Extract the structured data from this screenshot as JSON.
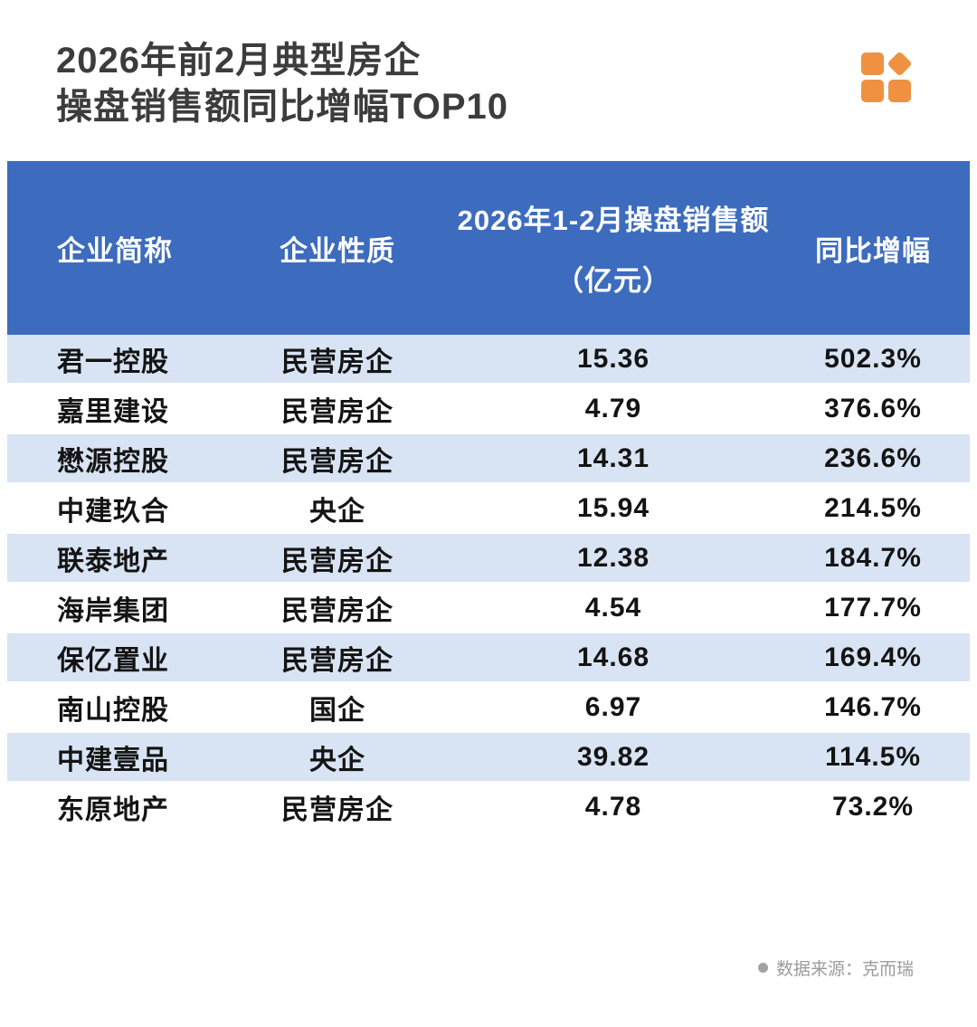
{
  "title": {
    "line1": "2026年前2月典型房企",
    "line2": "操盘销售额同比增幅TOP10"
  },
  "colors": {
    "header_bg": "#3d6cbe",
    "row_alt_bg": "#d8e4f3",
    "accent_orange": "#ef9140",
    "title_color": "#3c3c3c",
    "source_gray": "#9b9b9b"
  },
  "icons": {
    "logo": "orange-squares-logo"
  },
  "table": {
    "header": {
      "name": "企业简称",
      "nature": "企业性质",
      "sales_line1": "2026年1-2月操盘销售额",
      "sales_line2": "（亿元）",
      "growth": "同比增幅"
    },
    "rows": [
      {
        "name": "君一控股",
        "nature": "民营房企",
        "sales": "15.36",
        "growth": "502.3%"
      },
      {
        "name": "嘉里建设",
        "nature": "民营房企",
        "sales": "4.79",
        "growth": "376.6%"
      },
      {
        "name": "懋源控股",
        "nature": "民营房企",
        "sales": "14.31",
        "growth": "236.6%"
      },
      {
        "name": "中建玖合",
        "nature": "央企",
        "sales": "15.94",
        "growth": "214.5%"
      },
      {
        "name": "联泰地产",
        "nature": "民营房企",
        "sales": "12.38",
        "growth": "184.7%"
      },
      {
        "name": "海岸集团",
        "nature": "民营房企",
        "sales": "4.54",
        "growth": "177.7%"
      },
      {
        "name": "保亿置业",
        "nature": "民营房企",
        "sales": "14.68",
        "growth": "169.4%"
      },
      {
        "name": "南山控股",
        "nature": "国企",
        "sales": "6.97",
        "growth": "146.7%"
      },
      {
        "name": "中建壹品",
        "nature": "央企",
        "sales": "39.82",
        "growth": "114.5%"
      },
      {
        "name": "东原地产",
        "nature": "民营房企",
        "sales": "4.78",
        "growth": "73.2%"
      }
    ]
  },
  "footer": {
    "source_label": "数据来源：克而瑞"
  },
  "chart_data": {
    "type": "table",
    "title": "2026年前2月典型房企操盘销售额同比增幅TOP10",
    "columns": [
      "企业简称",
      "企业性质",
      "2026年1-2月操盘销售额（亿元）",
      "同比增幅"
    ],
    "rows": [
      [
        "君一控股",
        "民营房企",
        15.36,
        "502.3%"
      ],
      [
        "嘉里建设",
        "民营房企",
        4.79,
        "376.6%"
      ],
      [
        "懋源控股",
        "民营房企",
        14.31,
        "236.6%"
      ],
      [
        "中建玖合",
        "央企",
        15.94,
        "214.5%"
      ],
      [
        "联泰地产",
        "民营房企",
        12.38,
        "184.7%"
      ],
      [
        "海岸集团",
        "民营房企",
        4.54,
        "177.7%"
      ],
      [
        "保亿置业",
        "民营房企",
        14.68,
        "169.4%"
      ],
      [
        "南山控股",
        "国企",
        6.97,
        "146.7%"
      ],
      [
        "中建壹品",
        "央企",
        39.82,
        "114.5%"
      ],
      [
        "东原地产",
        "民营房企",
        4.78,
        "73.2%"
      ]
    ],
    "source": "克而瑞"
  }
}
